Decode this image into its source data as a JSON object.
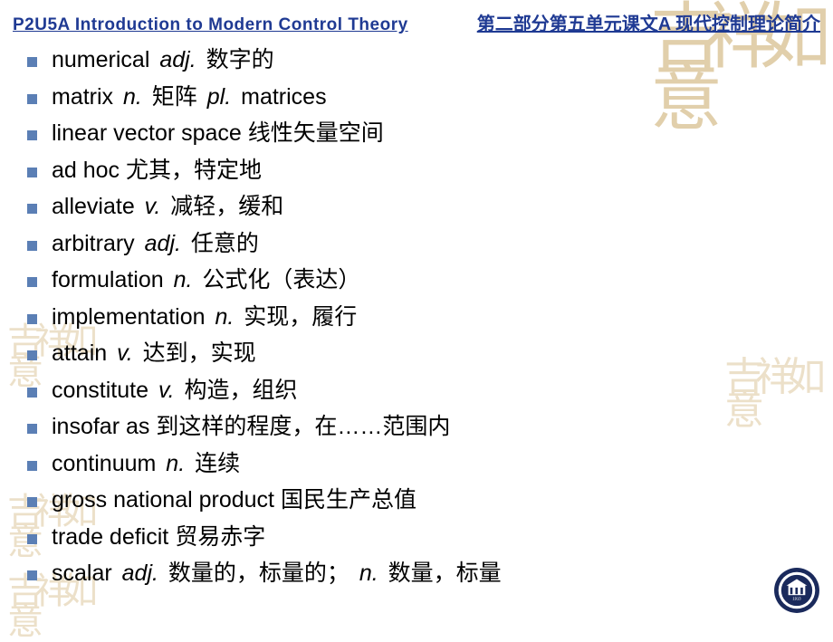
{
  "header": {
    "left": "P2U5A Introduction to Modern Control Theory",
    "right": "第二部分第五单元课文A 现代控制理论简介"
  },
  "colors": {
    "header_text": "#1f3a93",
    "bullet": "#5b7fb5",
    "body_text": "#000000",
    "watermark": "#c9a968",
    "background": "#ffffff",
    "logo_ring": "#1a2a5c",
    "logo_inner": "#ffffff"
  },
  "typography": {
    "header_fontsize": 19,
    "body_fontsize": 25,
    "body_font_en": "Arial",
    "body_font_cn": "SimSun"
  },
  "vocab": [
    {
      "term": "numerical",
      "pos": "adj.",
      "def": "数字的"
    },
    {
      "term": "matrix",
      "pos": "n.",
      "def": "矩阵",
      "extra_pos": "pl.",
      "extra": "matrices"
    },
    {
      "term": "linear vector space",
      "pos": "",
      "def": "线性矢量空间"
    },
    {
      "term": "ad hoc",
      "pos": "",
      "def": "尤其，特定地"
    },
    {
      "term": "alleviate",
      "pos": "v.",
      "def": "减轻，缓和"
    },
    {
      "term": "arbitrary",
      "pos": "adj.",
      "def": "任意的"
    },
    {
      "term": "formulation",
      "pos": "n.",
      "def": "公式化（表达）"
    },
    {
      "term": "implementation",
      "pos": "n.",
      "def": "实现，履行"
    },
    {
      "term": "attain",
      "pos": "v.",
      "def": "达到，实现"
    },
    {
      "term": "constitute",
      "pos": "v.",
      "def": "构造，组织"
    },
    {
      "term": "insofar as",
      "pos": "",
      "def": "到这样的程度，在……范围内"
    },
    {
      "term": "continuum",
      "pos": "n.",
      "def": "连续"
    },
    {
      "term": "gross national product",
      "pos": "",
      "def": "国民生产总值"
    },
    {
      "term": "trade deficit",
      "pos": "",
      "def": "贸易赤字"
    },
    {
      "term": "scalar",
      "pos": "adj.",
      "def": "数量的，标量的；",
      "extra_pos": "n.",
      "extra_def": "数量，标量"
    }
  ],
  "watermark_text": "吉祥如意",
  "logo_year": "1913"
}
